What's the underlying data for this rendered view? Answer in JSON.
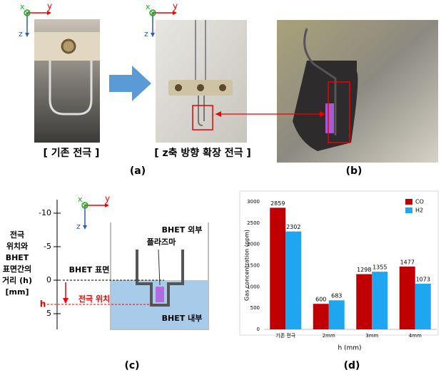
{
  "axis_labels": {
    "x": "x",
    "y": "y",
    "z": "z"
  },
  "panel_a": {
    "left_caption": "[ 기존 전극 ]",
    "right_caption": "[ z축 방향 확장 전극 ]",
    "label": "(a)"
  },
  "panel_b": {
    "label": "(b)"
  },
  "panel_c": {
    "scale_ticks": [
      -10,
      -5,
      0,
      5
    ],
    "h_label": "h",
    "distance_label": [
      "전극",
      "위치와",
      "BHET",
      "표면간의",
      "거리 (h)",
      "[mm]"
    ],
    "outside": "BHET 외부",
    "plasma": "플라즈마",
    "surface": "BHET 표면",
    "electrode": "전극 위치",
    "inside": "BHET 내부",
    "label": "(c)"
  },
  "chart_data": {
    "type": "bar",
    "categories": [
      "기존 전극",
      "2mm",
      "3mm",
      "4mm"
    ],
    "series": [
      {
        "name": "CO",
        "color": "#c00000",
        "values": [
          2859,
          600,
          1298,
          1477
        ]
      },
      {
        "name": "H2",
        "color": "#1ea6f0",
        "values": [
          2302,
          683,
          1355,
          1073
        ]
      }
    ],
    "ylim": [
      0,
      3000
    ],
    "yticks": [
      0,
      500,
      1000,
      1500,
      2000,
      2500,
      3000
    ],
    "xlabel": "h (mm)",
    "ylabel": "Gas concentration (ppm)",
    "legend": "top-right",
    "grid": false
  },
  "chart_label": "(d)"
}
